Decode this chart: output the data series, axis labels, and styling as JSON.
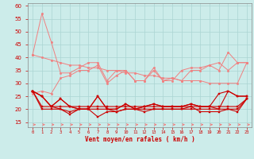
{
  "xlabel": "Vent moyen/en rafales ( km/h )",
  "x": [
    0,
    1,
    2,
    3,
    4,
    5,
    6,
    7,
    8,
    9,
    10,
    11,
    12,
    13,
    14,
    15,
    16,
    17,
    18,
    19,
    20,
    21,
    22,
    23
  ],
  "rafales_top": [
    41,
    57,
    46,
    34,
    34,
    36,
    38,
    38,
    31,
    35,
    35,
    31,
    31,
    36,
    31,
    32,
    31,
    35,
    35,
    37,
    35,
    42,
    38,
    38
  ],
  "rafales_trend": [
    41,
    40,
    39,
    38,
    37,
    37,
    36,
    36,
    35,
    35,
    34,
    34,
    33,
    33,
    32,
    32,
    31,
    31,
    31,
    30,
    30,
    30,
    30,
    38
  ],
  "rafales_mid": [
    26,
    27,
    26,
    32,
    33,
    35,
    35,
    37,
    30,
    33,
    35,
    31,
    31,
    35,
    31,
    31,
    35,
    36,
    36,
    37,
    38,
    35,
    38,
    38
  ],
  "moyen_high": [
    27,
    25,
    21,
    24,
    21,
    20,
    20,
    25,
    20,
    20,
    22,
    20,
    21,
    22,
    21,
    21,
    21,
    22,
    21,
    21,
    20,
    27,
    25,
    25
  ],
  "moyen_flat_hi": [
    27,
    21,
    21,
    21,
    21,
    21,
    21,
    21,
    21,
    21,
    21,
    21,
    21,
    21,
    21,
    21,
    21,
    21,
    21,
    21,
    21,
    21,
    21,
    24
  ],
  "moyen_flat_lo": [
    27,
    20,
    20,
    20,
    19,
    20,
    20,
    20,
    20,
    19,
    20,
    20,
    20,
    20,
    20,
    20,
    20,
    20,
    20,
    20,
    20,
    20,
    20,
    24
  ],
  "moyen_low": [
    27,
    25,
    21,
    20,
    18,
    20,
    20,
    17,
    19,
    19,
    20,
    20,
    19,
    20,
    20,
    20,
    20,
    21,
    19,
    19,
    19,
    20,
    19,
    24
  ],
  "moyen_spike": [
    27,
    25,
    21,
    24,
    21,
    20,
    20,
    25,
    20,
    20,
    22,
    20,
    21,
    22,
    21,
    21,
    21,
    22,
    21,
    21,
    26,
    27,
    25,
    25
  ],
  "bg_color": "#ccecea",
  "grid_color": "#aad4d2",
  "color_light": "#f08080",
  "color_dark": "#cc0000",
  "ylim": [
    13,
    61
  ],
  "yticks": [
    15,
    20,
    25,
    30,
    35,
    40,
    45,
    50,
    55,
    60
  ]
}
